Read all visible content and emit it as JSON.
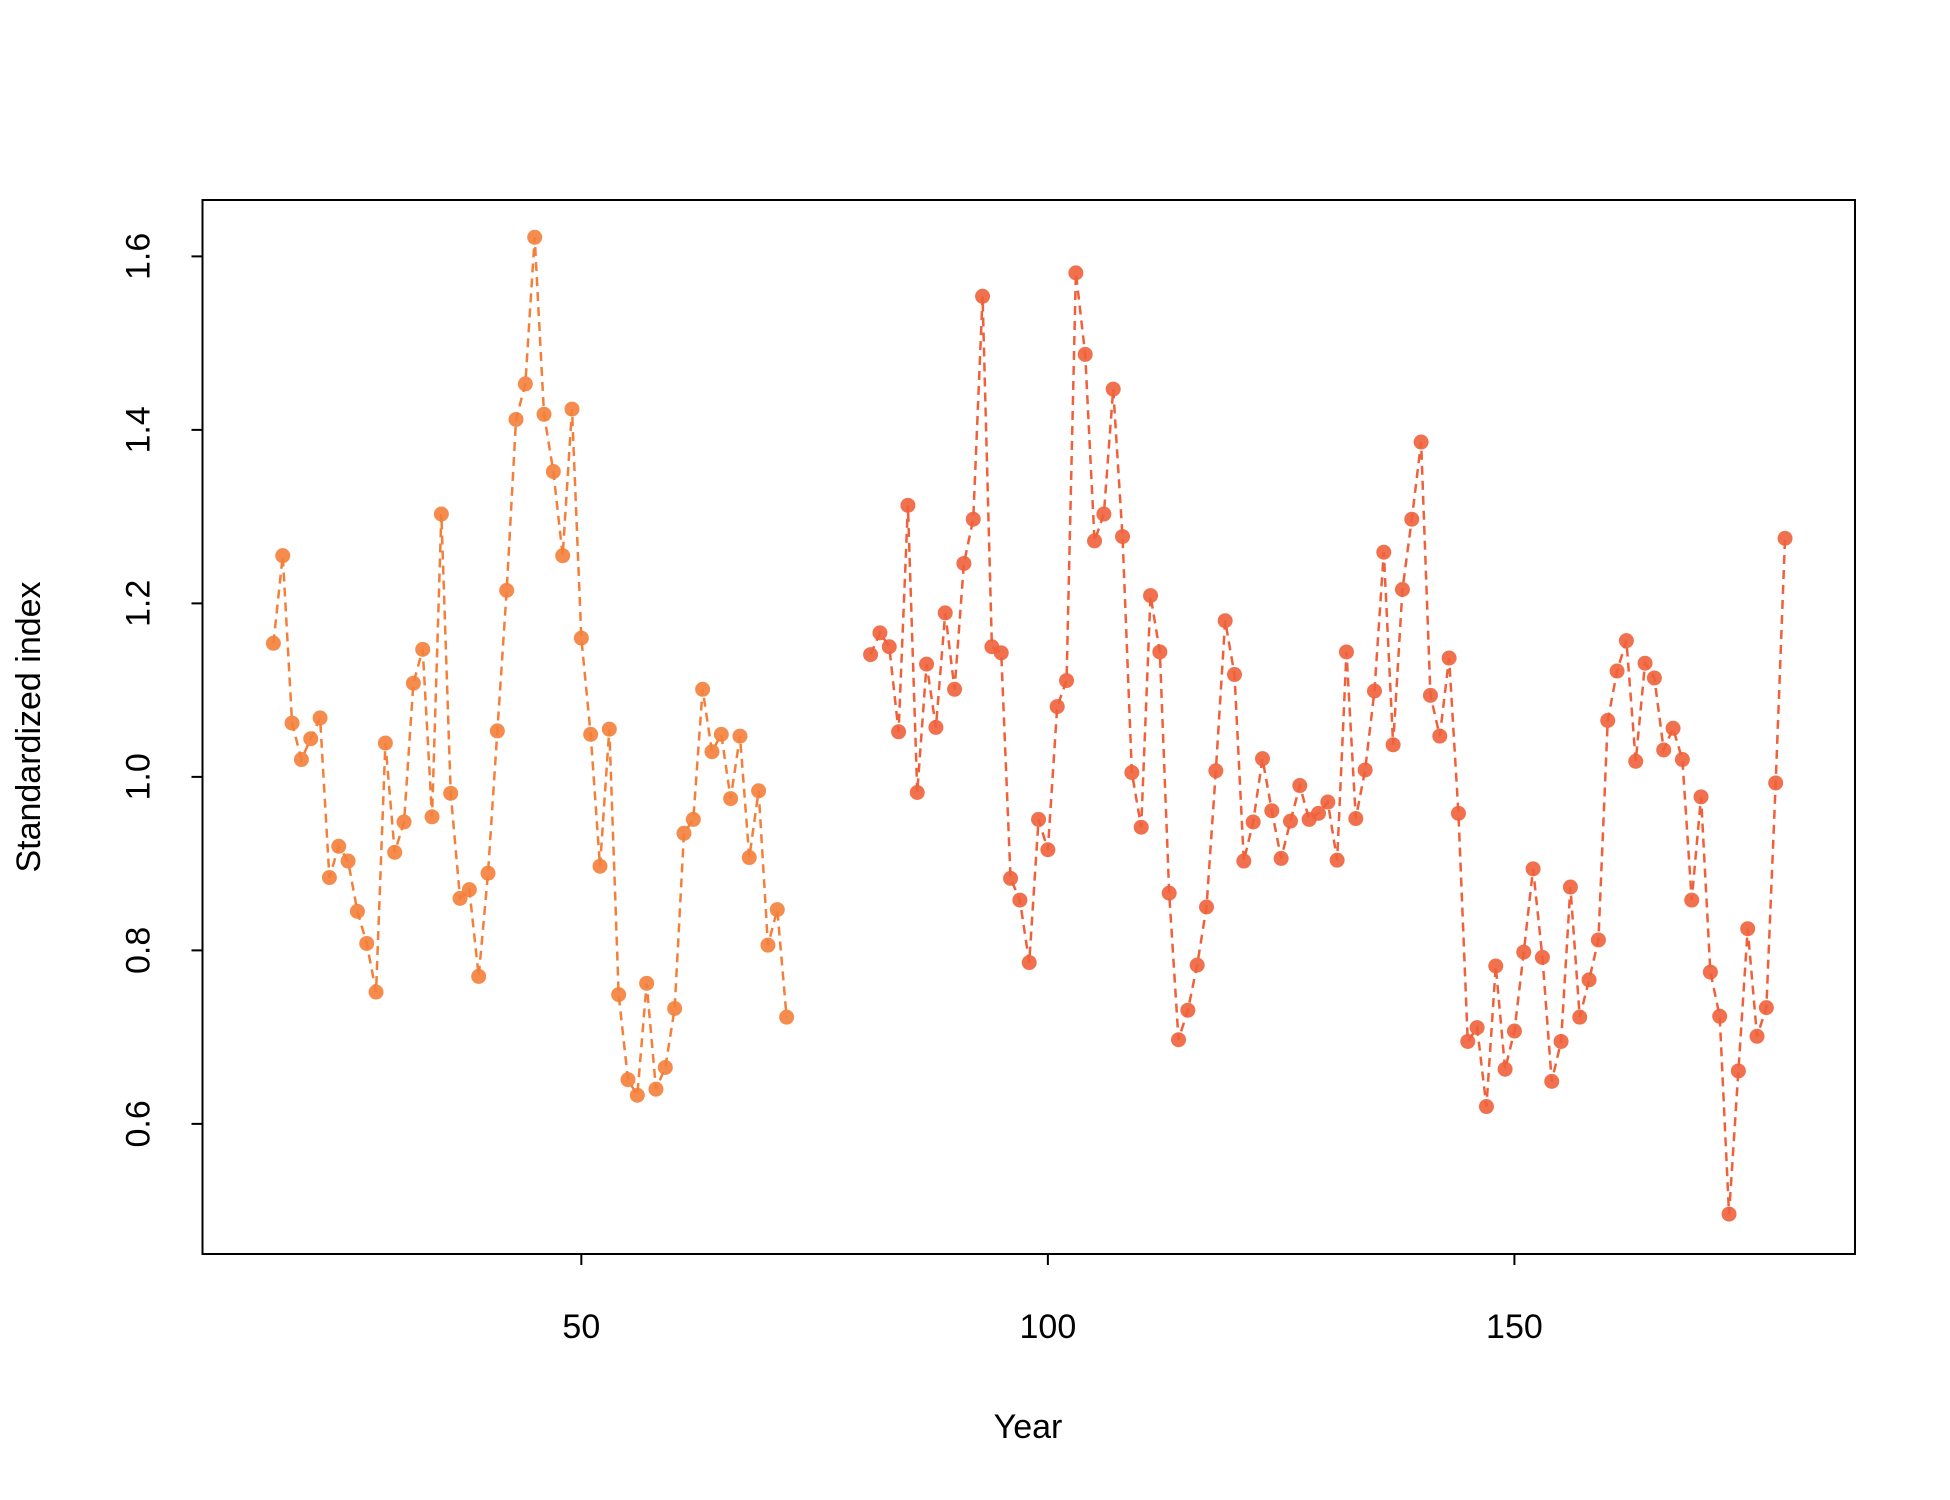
{
  "chart_data": {
    "type": "line",
    "xlabel": "Year",
    "ylabel": "Standardized index",
    "xlim": [
      9.4,
      186.5
    ],
    "ylim": [
      0.45,
      1.665
    ],
    "xticks": [
      50,
      100,
      150
    ],
    "yticks": [
      0.6,
      0.8,
      {
        "value": 1,
        "label": "1.0"
      },
      1.2,
      1.4,
      1.6
    ],
    "line_style": "dashed",
    "markers": true,
    "series": [
      {
        "color": "#f47f3a",
        "x": [
          17,
          18,
          19,
          20,
          21,
          22,
          23,
          24,
          25,
          26,
          27,
          28,
          29,
          30,
          31,
          32,
          33,
          34,
          35,
          36,
          37,
          38,
          39,
          40,
          41,
          42,
          43,
          44,
          45,
          46,
          47,
          48,
          49,
          50,
          51,
          52,
          53,
          54,
          55,
          56,
          57,
          58,
          59,
          60,
          61,
          62,
          63,
          64,
          65,
          66,
          67,
          68,
          69,
          70,
          71,
          72
        ],
        "values": [
          1.154,
          1.255,
          1.062,
          1.02,
          1.044,
          1.068,
          0.884,
          0.92,
          0.903,
          0.845,
          0.808,
          0.752,
          1.039,
          0.913,
          0.948,
          1.108,
          1.147,
          0.954,
          1.303,
          0.981,
          0.86,
          0.87,
          0.77,
          0.889,
          1.053,
          1.215,
          1.412,
          1.453,
          1.622,
          1.418,
          1.352,
          1.255,
          1.424,
          1.16,
          1.049,
          0.897,
          1.055,
          0.749,
          0.651,
          0.633,
          0.762,
          0.64,
          0.665,
          0.733,
          0.935,
          0.951,
          1.101,
          1.029,
          1.049,
          0.975,
          1.047,
          0.907,
          0.984,
          0.806,
          0.847,
          0.723
        ]
      },
      {
        "color": "#f0603a",
        "x": [
          81,
          82,
          83,
          84,
          85,
          86,
          87,
          88,
          89,
          90,
          91,
          92,
          93,
          94,
          95,
          96,
          97,
          98,
          99,
          100,
          101,
          102,
          103,
          104,
          105,
          106,
          107,
          108,
          109,
          110,
          111,
          112,
          113,
          114,
          115,
          116,
          117,
          118,
          119,
          120,
          121,
          122,
          123,
          124,
          125,
          126,
          127,
          128,
          129,
          130,
          131,
          132,
          133,
          134,
          135,
          136,
          137,
          138,
          139,
          140,
          141,
          142,
          143,
          144,
          145,
          146,
          147,
          148,
          149,
          150,
          151,
          152,
          153,
          154,
          155,
          156,
          157,
          158,
          159,
          160,
          161,
          162,
          163,
          164,
          165,
          166,
          167,
          168,
          169,
          170,
          171,
          172,
          173,
          174,
          175,
          176,
          177,
          178,
          179
        ],
        "values": [
          1.141,
          1.166,
          1.15,
          1.052,
          1.313,
          0.982,
          1.13,
          1.057,
          1.189,
          1.101,
          1.246,
          1.297,
          1.554,
          1.15,
          1.143,
          0.883,
          0.858,
          0.786,
          0.951,
          0.916,
          1.081,
          1.111,
          1.581,
          1.487,
          1.272,
          1.303,
          1.447,
          1.277,
          1.005,
          0.942,
          1.209,
          1.144,
          0.866,
          0.697,
          0.731,
          0.783,
          0.85,
          1.007,
          1.18,
          1.118,
          0.903,
          0.948,
          1.021,
          0.961,
          0.906,
          0.949,
          0.99,
          0.951,
          0.958,
          0.971,
          0.904,
          1.144,
          0.952,
          1.008,
          1.099,
          1.259,
          1.037,
          1.216,
          1.297,
          1.386,
          1.094,
          1.047,
          1.137,
          0.958,
          0.695,
          0.711,
          0.62,
          0.782,
          0.663,
          0.707,
          0.798,
          0.894,
          0.792,
          0.649,
          0.695,
          0.873,
          0.723,
          0.766,
          0.812,
          1.065,
          1.122,
          1.157,
          1.018,
          1.131,
          1.114,
          1.031,
          1.056,
          1.02,
          0.858,
          0.977,
          0.775,
          0.724,
          0.496,
          0.661,
          0.825,
          0.701,
          0.734,
          0.993,
          1.275
        ]
      }
    ]
  }
}
